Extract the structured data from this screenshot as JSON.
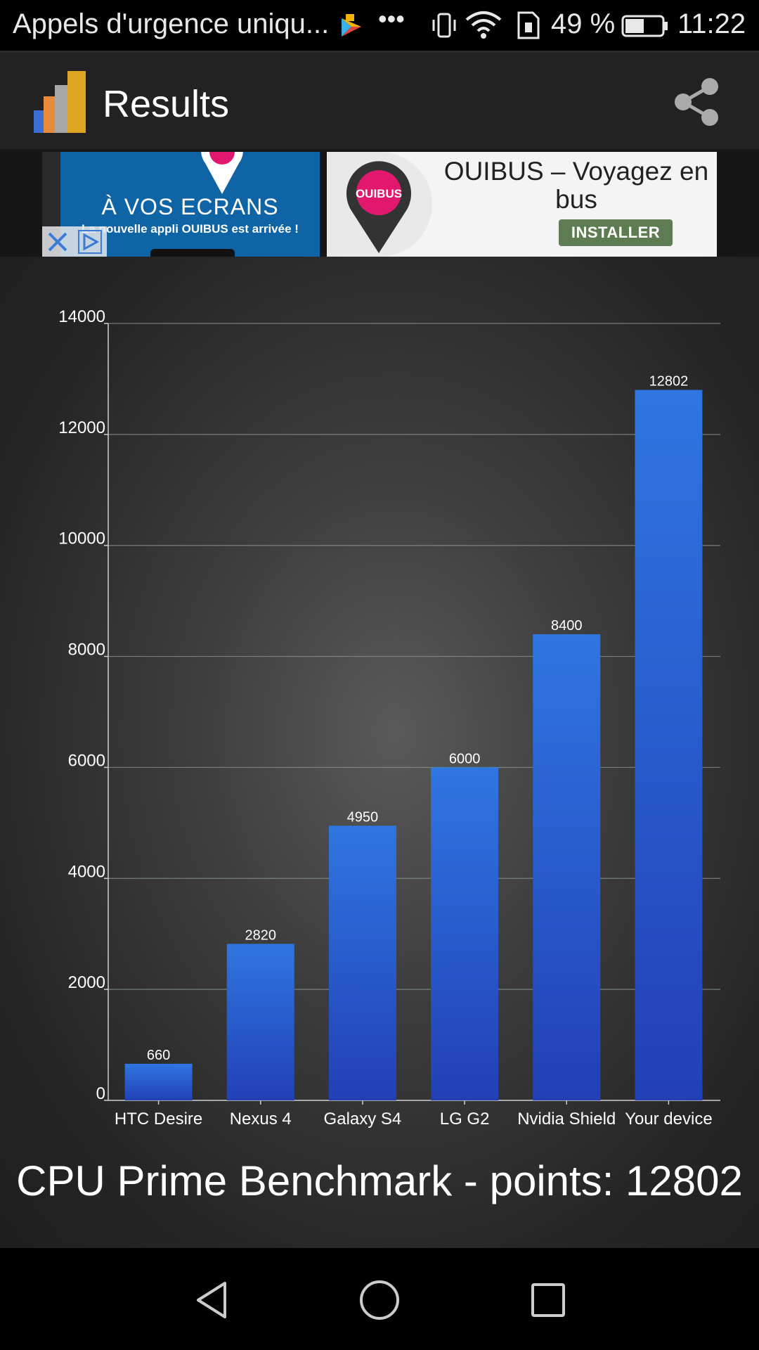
{
  "status_bar": {
    "notification_text": "Appels d'urgence uniqu...",
    "more_dots": "•••",
    "battery_percent": "49 %",
    "time": "11:22"
  },
  "app_bar": {
    "title": "Results"
  },
  "ad": {
    "left_headline": "À VOS ECRANS",
    "left_subtext": "La nouvelle appli OUIBUS est arrivée !",
    "brand": "OUIBUS",
    "title": "OUIBUS – Voyagez en bus",
    "cta": "INSTALLER"
  },
  "chart_data": {
    "type": "bar",
    "categories": [
      "HTC Desire",
      "Nexus 4",
      "Galaxy S4",
      "LG G2",
      "Nvidia Shield",
      "Your device"
    ],
    "values": [
      660,
      2820,
      4950,
      6000,
      8400,
      12802
    ],
    "value_labels": [
      "660",
      "2820",
      "4950",
      "6000",
      "8400",
      "12802"
    ],
    "y_ticks": [
      "0",
      "2000",
      "4000",
      "6000",
      "8000",
      "10000",
      "12000",
      "14000"
    ],
    "ylim": [
      0,
      14000
    ],
    "grid": true
  },
  "caption": "CPU Prime Benchmark - points: 12802",
  "colors": {
    "bar_top": "#2f76e0",
    "bar_bottom": "#2240b6",
    "grid": "#8a9a8a"
  }
}
